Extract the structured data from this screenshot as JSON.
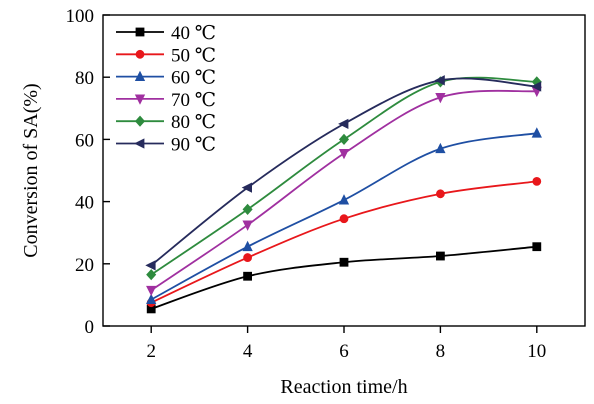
{
  "chart_data": {
    "type": "line",
    "xlabel": "Reaction time/h",
    "ylabel": "Conversion of SA(%)",
    "xlim": [
      1,
      11
    ],
    "ylim": [
      0,
      100
    ],
    "x_ticks": [
      2,
      4,
      6,
      8,
      10
    ],
    "y_ticks": [
      0,
      20,
      40,
      60,
      80,
      100
    ],
    "grid": false,
    "legend": "top-left",
    "series": [
      {
        "name": "40 ℃",
        "color": "#000000",
        "marker": "square",
        "x": [
          2,
          4,
          6,
          8,
          10
        ],
        "y": [
          5.5,
          16,
          20.5,
          22.5,
          25.5
        ]
      },
      {
        "name": "50 ℃",
        "color": "#e8171b",
        "marker": "circle",
        "x": [
          2,
          4,
          6,
          8,
          10
        ],
        "y": [
          7.5,
          22,
          34.5,
          42.5,
          46.5
        ]
      },
      {
        "name": "60 ℃",
        "color": "#1f4fa3",
        "marker": "triangle-up",
        "x": [
          2,
          4,
          6,
          8,
          10
        ],
        "y": [
          8.5,
          25.5,
          40.5,
          57,
          62
        ]
      },
      {
        "name": "70 ℃",
        "color": "#a030a0",
        "marker": "triangle-down",
        "x": [
          2,
          4,
          6,
          8,
          10
        ],
        "y": [
          11.5,
          32.5,
          55.5,
          73.5,
          75.5
        ]
      },
      {
        "name": "80 ℃",
        "color": "#2e8b3e",
        "marker": "diamond",
        "x": [
          2,
          4,
          6,
          8,
          10
        ],
        "y": [
          16.5,
          37.5,
          60,
          78.5,
          78.5
        ]
      },
      {
        "name": "90 ℃",
        "color": "#262b5c",
        "marker": "triangle-left",
        "x": [
          2,
          4,
          6,
          8,
          10
        ],
        "y": [
          19.5,
          44.5,
          65,
          79,
          77
        ]
      }
    ]
  }
}
